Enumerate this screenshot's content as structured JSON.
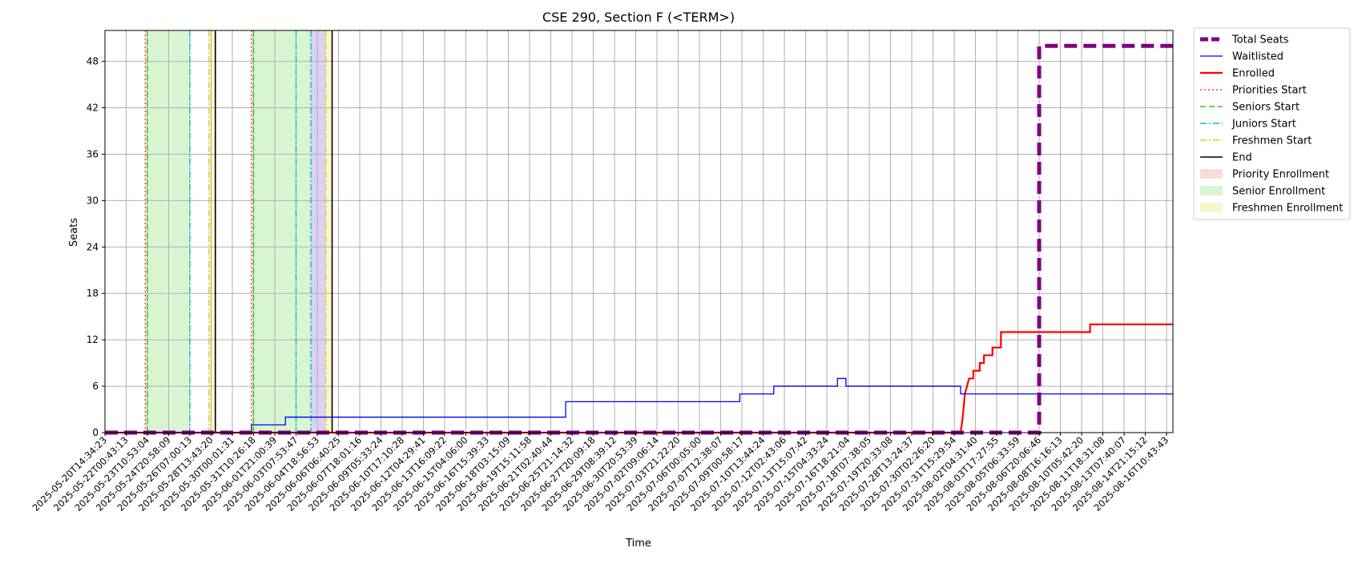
{
  "chart_data": {
    "type": "line",
    "title": "CSE 290, Section F (<TERM>)",
    "xlabel": "Time",
    "ylabel": "Seats",
    "ylim": [
      0,
      52
    ],
    "yticks": [
      0,
      6,
      12,
      18,
      24,
      30,
      36,
      42,
      48
    ],
    "grid": true,
    "legend_position": "outside-top-right",
    "xtick_labels": [
      "2025-05-20T14:34:23",
      "2025-05-22T00:43:13",
      "2025-05-23T10:53:04",
      "2025-05-24T20:58:09",
      "2025-05-26T07:00:13",
      "2025-05-28T13:43:20",
      "2025-05-30T00:01:31",
      "2025-05-31T10:26:18",
      "2025-06-01T21:00:39",
      "2025-06-03T07:53:47",
      "2025-06-04T18:56:53",
      "2025-06-06T06:40:25",
      "2025-06-07T18:01:16",
      "2025-06-09T05:33:24",
      "2025-06-10T17:10:28",
      "2025-06-12T04:29:41",
      "2025-06-13T16:09:22",
      "2025-06-15T04:06:00",
      "2025-06-16T15:39:33",
      "2025-06-18T03:15:09",
      "2025-06-19T15:11:58",
      "2025-06-21T02:40:44",
      "2025-06-25T21:14:32",
      "2025-06-27T20:09:18",
      "2025-06-29T08:39:12",
      "2025-06-30T20:53:39",
      "2025-07-02T09:06:14",
      "2025-07-03T21:22:20",
      "2025-07-06T00:05:00",
      "2025-07-07T12:38:07",
      "2025-07-09T00:58:17",
      "2025-07-10T13:44:24",
      "2025-07-12T02:43:06",
      "2025-07-13T15:07:42",
      "2025-07-15T04:33:24",
      "2025-07-16T18:21:04",
      "2025-07-18T07:38:05",
      "2025-07-19T20:33:08",
      "2025-07-28T13:24:37",
      "2025-07-30T02:26:20",
      "2025-07-31T15:29:54",
      "2025-08-02T04:31:40",
      "2025-08-03T17:27:55",
      "2025-08-05T06:33:59",
      "2025-08-06T20:06:46",
      "2025-08-08T16:16:13",
      "2025-08-10T05:42:20",
      "2025-08-11T18:31:08",
      "2025-08-13T07:40:07",
      "2025-08-14T21:15:12",
      "2025-08-16T10:43:43"
    ],
    "series": [
      {
        "name": "Total Seats",
        "color": "#800080",
        "style": "dashed",
        "points": [
          [
            0,
            0
          ],
          [
            44,
            0
          ],
          [
            44,
            50
          ],
          [
            50.3,
            50
          ]
        ]
      },
      {
        "name": "Waitlisted",
        "color": "#0000ff",
        "style": "solid",
        "points": [
          [
            0,
            0
          ],
          [
            6.9,
            0
          ],
          [
            6.9,
            1
          ],
          [
            8.5,
            1
          ],
          [
            8.5,
            2
          ],
          [
            21.7,
            2
          ],
          [
            21.7,
            4
          ],
          [
            29.9,
            4
          ],
          [
            29.9,
            5
          ],
          [
            31.5,
            5
          ],
          [
            31.5,
            6
          ],
          [
            34.5,
            6
          ],
          [
            34.5,
            7
          ],
          [
            34.9,
            7
          ],
          [
            34.9,
            6
          ],
          [
            40.3,
            6
          ],
          [
            40.3,
            5
          ],
          [
            50.3,
            5
          ]
        ]
      },
      {
        "name": "Enrolled",
        "color": "#ff0000",
        "style": "solid",
        "points": [
          [
            0,
            0
          ],
          [
            40.3,
            0
          ],
          [
            40.4,
            2
          ],
          [
            40.5,
            5
          ],
          [
            40.6,
            6
          ],
          [
            40.7,
            7
          ],
          [
            40.9,
            7
          ],
          [
            40.9,
            8
          ],
          [
            41.2,
            8
          ],
          [
            41.2,
            9
          ],
          [
            41.4,
            9
          ],
          [
            41.4,
            10
          ],
          [
            41.8,
            10
          ],
          [
            41.8,
            11
          ],
          [
            42.2,
            11
          ],
          [
            42.2,
            13
          ],
          [
            46.4,
            13
          ],
          [
            46.4,
            14
          ],
          [
            50.3,
            14
          ]
        ]
      }
    ],
    "vertical_markers": [
      {
        "name": "Priorities Start",
        "color": "#ff4422",
        "style": "dotted",
        "x": [
          1.9,
          6.9
        ]
      },
      {
        "name": "Seniors Start",
        "color": "#22cc22",
        "style": "dashed",
        "x": [
          2.0,
          7.0
        ]
      },
      {
        "name": "Juniors Start",
        "color": "#00bfbf",
        "style": "dashdot",
        "x": [
          4.0,
          9.0,
          9.7
        ]
      },
      {
        "name": "Freshmen Start",
        "color": "#e0d000",
        "style": "dashdot",
        "x": [
          4.9,
          10.4
        ]
      },
      {
        "name": "End",
        "color": "#000000",
        "style": "solid",
        "x": [
          5.2,
          10.7
        ]
      }
    ],
    "shaded_regions": [
      {
        "name": "Priority Enrollment",
        "color": "#f9dcd2",
        "spans": [
          [
            1.9,
            2.0
          ],
          [
            6.9,
            7.0
          ]
        ]
      },
      {
        "name": "Senior Enrollment",
        "color": "#d8f5d2",
        "spans": [
          [
            2.0,
            4.0
          ],
          [
            7.0,
            9.7
          ]
        ]
      },
      {
        "name": "Freshmen Enrollment",
        "color": "#f7f7cc",
        "spans": [
          [
            4.9,
            5.2
          ],
          [
            10.4,
            10.7
          ]
        ]
      }
    ],
    "unlabeled_regions": [
      {
        "color": "#cde6ff",
        "spans": [
          [
            9.0,
            9.7
          ]
        ]
      },
      {
        "color": "#dcd0f5",
        "spans": [
          [
            9.7,
            10.4
          ]
        ]
      }
    ]
  }
}
